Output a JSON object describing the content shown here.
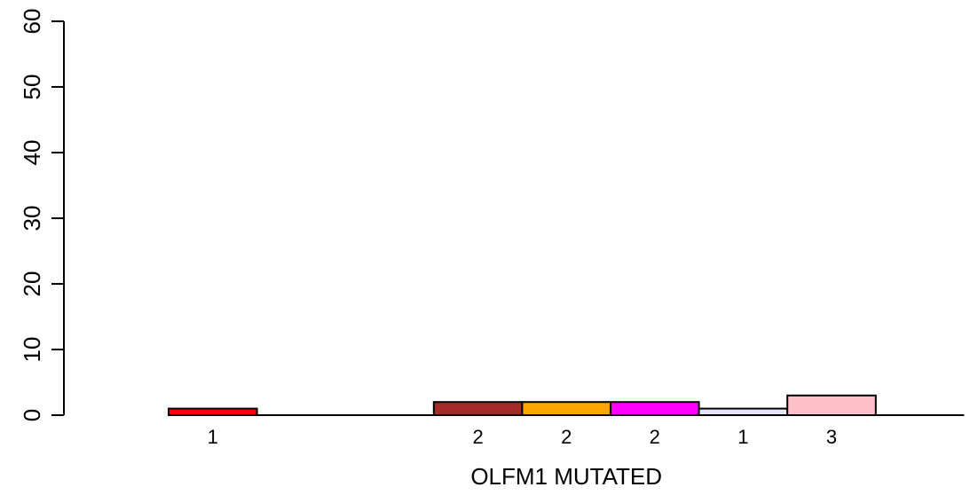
{
  "chart_data": {
    "type": "bar",
    "title": "",
    "xlabel": "OLFM1 MUTATED",
    "ylabel": "",
    "ylim": [
      0,
      60
    ],
    "y_ticks": [
      0,
      10,
      20,
      30,
      40,
      50,
      60
    ],
    "y_tick_labels": [
      "0",
      "10",
      "20",
      "30",
      "40",
      "50",
      "60"
    ],
    "bars": [
      {
        "value": 1,
        "label": "1",
        "color": "#ff0000"
      },
      {
        "value": 0,
        "label": "",
        "color": "#ffffff"
      },
      {
        "value": 0,
        "label": "",
        "color": "#ffffff"
      },
      {
        "value": 2,
        "label": "2",
        "color": "#a52a2a"
      },
      {
        "value": 2,
        "label": "2",
        "color": "#ffa500"
      },
      {
        "value": 2,
        "label": "2",
        "color": "#ff00ff"
      },
      {
        "value": 1,
        "label": "1",
        "color": "#e6e6fa"
      },
      {
        "value": 3,
        "label": "3",
        "color": "#ffc0cb"
      },
      {
        "value": 0,
        "label": "",
        "color": "#ffffff"
      }
    ],
    "grid": false,
    "legend": "none"
  }
}
